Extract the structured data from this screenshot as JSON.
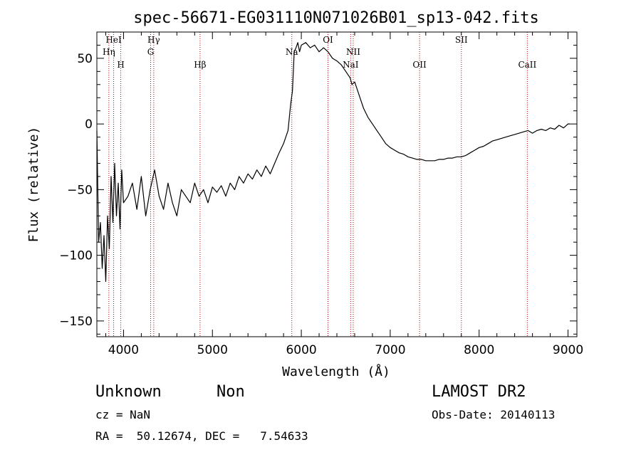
{
  "chart_data": {
    "type": "line",
    "title": "spec-56671-EG031110N071026B01_sp13-042.fits",
    "xlabel": "Wavelength (Å)",
    "ylabel": "Flux (relative)",
    "xlim": [
      3700,
      9100
    ],
    "ylim": [
      -162,
      70
    ],
    "xticks": [
      4000,
      5000,
      6000,
      7000,
      8000,
      9000
    ],
    "xtick_labels": [
      "4000",
      "5000",
      "6000",
      "7000",
      "8000",
      "9000"
    ],
    "yticks": [
      -150,
      -100,
      -50,
      0,
      50
    ],
    "ytick_labels": [
      "−150",
      "−100",
      "−50",
      "0",
      "50"
    ],
    "grid": false,
    "series": [
      {
        "name": "spectrum",
        "x": [
          3700,
          3720,
          3740,
          3760,
          3780,
          3800,
          3820,
          3840,
          3860,
          3880,
          3900,
          3920,
          3940,
          3960,
          3980,
          4000,
          4050,
          4100,
          4150,
          4200,
          4250,
          4300,
          4350,
          4400,
          4450,
          4500,
          4550,
          4600,
          4650,
          4700,
          4750,
          4800,
          4850,
          4900,
          4950,
          5000,
          5050,
          5100,
          5150,
          5200,
          5250,
          5300,
          5350,
          5400,
          5450,
          5500,
          5550,
          5600,
          5650,
          5700,
          5750,
          5800,
          5850,
          5880,
          5900,
          5920,
          5940,
          5960,
          5980,
          6000,
          6050,
          6100,
          6150,
          6200,
          6250,
          6300,
          6350,
          6400,
          6450,
          6500,
          6550,
          6570,
          6600,
          6650,
          6700,
          6750,
          6800,
          6850,
          6900,
          6950,
          7000,
          7050,
          7100,
          7150,
          7200,
          7250,
          7300,
          7350,
          7400,
          7450,
          7500,
          7550,
          7600,
          7650,
          7700,
          7750,
          7800,
          7850,
          7900,
          7950,
          8000,
          8050,
          8100,
          8150,
          8200,
          8250,
          8300,
          8350,
          8400,
          8450,
          8500,
          8550,
          8600,
          8650,
          8700,
          8750,
          8800,
          8850,
          8900,
          8950,
          9000,
          9020
        ],
        "y": [
          -5,
          -90,
          -75,
          -110,
          -85,
          -120,
          -70,
          -95,
          -40,
          -75,
          -30,
          -70,
          -45,
          -80,
          -35,
          -60,
          -55,
          -45,
          -65,
          -40,
          -70,
          -50,
          -35,
          -55,
          -65,
          -45,
          -60,
          -70,
          -50,
          -55,
          -60,
          -45,
          -55,
          -50,
          -60,
          -48,
          -52,
          -47,
          -55,
          -45,
          -50,
          -40,
          -45,
          -38,
          -42,
          -35,
          -40,
          -32,
          -38,
          -30,
          -22,
          -15,
          -5,
          15,
          25,
          55,
          58,
          62,
          55,
          60,
          62,
          58,
          60,
          55,
          58,
          55,
          50,
          48,
          45,
          40,
          35,
          30,
          32,
          22,
          12,
          5,
          0,
          -5,
          -10,
          -15,
          -18,
          -20,
          -22,
          -23,
          -25,
          -26,
          -27,
          -27,
          -28,
          -28,
          -28,
          -27,
          -27,
          -26,
          -26,
          -25,
          -25,
          -24,
          -22,
          -20,
          -18,
          -17,
          -15,
          -13,
          -12,
          -11,
          -10,
          -9,
          -8,
          -7,
          -6,
          -5,
          -7,
          -5,
          -4,
          -5,
          -3,
          -4,
          -1,
          -3,
          0,
          0
        ]
      }
    ],
    "lines": [
      {
        "label": "HeI",
        "x": 3889,
        "row": 0
      },
      {
        "label": "Hη",
        "x": 3835,
        "row": 1
      },
      {
        "label": "H",
        "x": 3969,
        "row": 2
      },
      {
        "label": "Hγ",
        "x": 4340,
        "row": 0
      },
      {
        "label": "G",
        "x": 4305,
        "row": 1
      },
      {
        "label": "Hβ",
        "x": 4861,
        "row": 2
      },
      {
        "label": "Na",
        "x": 5893,
        "row": 1
      },
      {
        "label": "OI",
        "x": 6300,
        "row": 0
      },
      {
        "label": "NII",
        "x": 6584,
        "row": 1
      },
      {
        "label": "NaI",
        "x": 6555,
        "row": 2
      },
      {
        "label": "OII",
        "x": 7330,
        "row": 2
      },
      {
        "label": "SII",
        "x": 7800,
        "row": 0
      },
      {
        "label": "CaII",
        "x": 8542,
        "row": 2
      }
    ]
  },
  "info": {
    "class": "Unknown",
    "subclass": "Non",
    "cz": "cz = NaN",
    "coords": "RA =  50.12674, DEC =   7.54633",
    "survey": "LAMOST DR2",
    "obs_date": "Obs-Date: 20140113"
  }
}
